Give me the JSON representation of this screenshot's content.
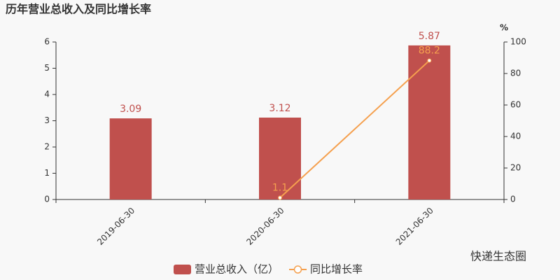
{
  "chart_data": {
    "type": "bar-line",
    "title": "历年营业总收入及同比增长率",
    "y2_label": "%",
    "watermark": "快递生态圈",
    "categories": [
      "2019-06-30",
      "2020-06-30",
      "2021-06-30"
    ],
    "series": [
      {
        "name": "营业总收入（亿）",
        "type": "bar",
        "color": "#c0504d",
        "values": [
          3.09,
          3.12,
          5.87
        ]
      },
      {
        "name": "同比增长率",
        "type": "line",
        "axis": "y2",
        "color": "#f5a04e",
        "values": [
          null,
          1.1,
          88.2
        ]
      }
    ],
    "ylim": [
      0,
      6
    ],
    "yticks": [
      0,
      1,
      2,
      3,
      4,
      5,
      6
    ],
    "y2lim": [
      0,
      100
    ],
    "y2ticks": [
      0,
      20,
      40,
      60,
      80,
      100
    ]
  }
}
